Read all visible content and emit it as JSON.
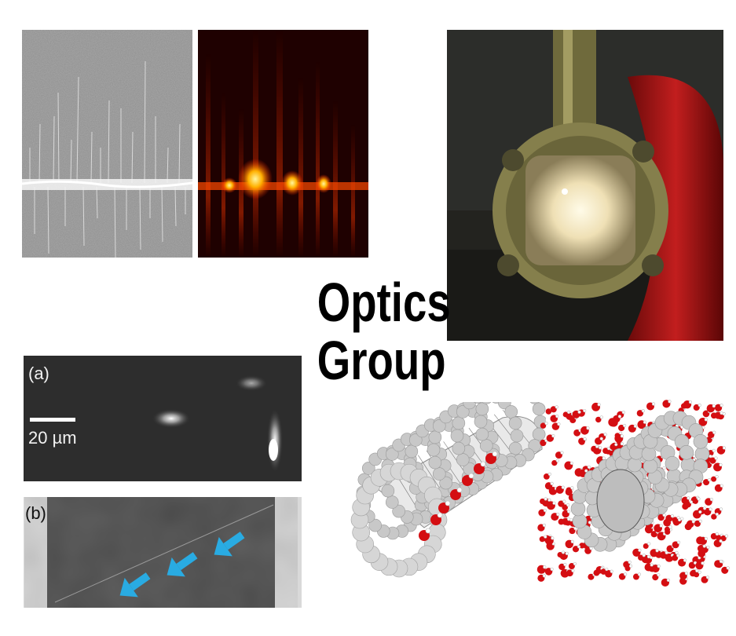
{
  "title": {
    "line1": "Optics",
    "line2": "Group"
  },
  "panel_a": {
    "label": "(a)",
    "scale_text": "20 µm"
  },
  "panel_b": {
    "label": "(b)"
  },
  "colors": {
    "arrow": "#29abe2",
    "carbon": "#c8c8c8",
    "oxygen": "#d40e12",
    "hydrogen": "#ffffff"
  }
}
